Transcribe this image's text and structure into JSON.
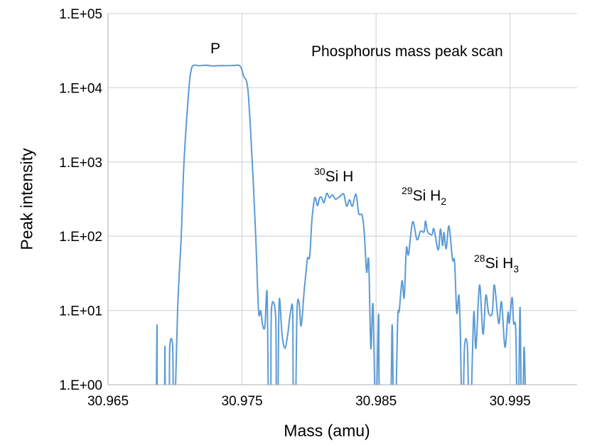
{
  "chart_data": {
    "type": "line",
    "title": "Phosphorus mass peak scan",
    "xlabel": "Mass (amu)",
    "ylabel": "Peak intensity",
    "xlim": [
      30.965,
      31.0
    ],
    "ylim": [
      1,
      100000
    ],
    "yscale": "log",
    "grid": true,
    "x_ticks": [
      30.965,
      30.975,
      30.985,
      30.995
    ],
    "x_tick_labels": [
      "30.965",
      "30.975",
      "30.985",
      "30.995"
    ],
    "y_ticks": [
      1,
      10,
      100,
      1000,
      10000,
      100000
    ],
    "y_tick_labels": [
      "1.E+00",
      "1.E+01",
      "1.E+02",
      "1.E+03",
      "1.E+04",
      "1.E+05"
    ],
    "line_color": "#5B9BD5",
    "annotations": {
      "p": "P",
      "si30h": {
        "isotope": "30",
        "text": "Si H"
      },
      "si29h2": {
        "isotope": "29",
        "text": "Si H",
        "sub": "2"
      },
      "si28h3": {
        "isotope": "28",
        "text": "Si H",
        "sub": "3"
      }
    },
    "series": [
      {
        "points": [
          [
            30.96855,
            0
          ],
          [
            30.9686,
            0
          ],
          [
            30.96866,
            6.4
          ],
          [
            30.96871,
            0
          ],
          [
            30.96918,
            0
          ],
          [
            30.96924,
            3.3
          ],
          [
            30.9693,
            0
          ],
          [
            30.96955,
            0
          ],
          [
            30.96961,
            3.3
          ],
          [
            30.96982,
            3.3
          ],
          [
            30.96988,
            0
          ],
          [
            30.97,
            0
          ],
          [
            30.97019,
            10
          ],
          [
            30.97046,
            100
          ],
          [
            30.97067,
            1000
          ],
          [
            30.97104,
            10000
          ],
          [
            30.9712,
            17000
          ],
          [
            30.97136,
            20000
          ],
          [
            30.97178,
            19800
          ],
          [
            30.97231,
            20100
          ],
          [
            30.97284,
            19700
          ],
          [
            30.97337,
            19900
          ],
          [
            30.9739,
            19800
          ],
          [
            30.97443,
            20000
          ],
          [
            30.97486,
            19600
          ],
          [
            30.97512,
            14400
          ],
          [
            30.97544,
            9200
          ],
          [
            30.97576,
            1000
          ],
          [
            30.97602,
            100
          ],
          [
            30.97623,
            9.9
          ],
          [
            30.97639,
            9.9
          ],
          [
            30.97655,
            6.2
          ],
          [
            30.97671,
            6.2
          ],
          [
            30.97687,
            17
          ],
          [
            30.97698,
            0
          ],
          [
            30.97714,
            0
          ],
          [
            30.97719,
            10
          ],
          [
            30.97751,
            8
          ],
          [
            30.97756,
            0
          ],
          [
            30.97767,
            0
          ],
          [
            30.97777,
            13.5
          ],
          [
            30.97798,
            4.8
          ],
          [
            30.9782,
            3.1
          ],
          [
            30.97841,
            4.8
          ],
          [
            30.97862,
            9.5
          ],
          [
            30.97878,
            9.5
          ],
          [
            30.97883,
            0
          ],
          [
            30.97899,
            0
          ],
          [
            30.9791,
            9.9
          ],
          [
            30.97926,
            12.6
          ],
          [
            30.97941,
            6.2
          ],
          [
            30.97963,
            18
          ],
          [
            30.97979,
            35
          ],
          [
            30.97989,
            51
          ],
          [
            30.98005,
            54
          ],
          [
            30.98021,
            163
          ],
          [
            30.98037,
            296
          ],
          [
            30.98047,
            330
          ],
          [
            30.98063,
            259
          ],
          [
            30.98079,
            330
          ],
          [
            30.98095,
            330
          ],
          [
            30.98111,
            283
          ],
          [
            30.98132,
            377
          ],
          [
            30.98153,
            330
          ],
          [
            30.98175,
            361
          ],
          [
            30.98196,
            316
          ],
          [
            30.98217,
            330
          ],
          [
            30.98238,
            353
          ],
          [
            30.98259,
            369
          ],
          [
            30.98281,
            254
          ],
          [
            30.98302,
            309
          ],
          [
            30.98323,
            254
          ],
          [
            30.9835,
            369
          ],
          [
            30.98371,
            203
          ],
          [
            30.98397,
            190
          ],
          [
            30.98413,
            105
          ],
          [
            30.98429,
            33
          ],
          [
            30.98445,
            46
          ],
          [
            30.98461,
            3.1
          ],
          [
            30.98477,
            12
          ],
          [
            30.98493,
            0
          ],
          [
            30.98503,
            0
          ],
          [
            30.98519,
            8.9
          ],
          [
            30.9853,
            0
          ],
          [
            30.98604,
            0
          ],
          [
            30.9862,
            6.4
          ],
          [
            30.9863,
            0
          ],
          [
            30.98646,
            0
          ],
          [
            30.98662,
            7.9
          ],
          [
            30.98673,
            9.9
          ],
          [
            30.98694,
            25
          ],
          [
            30.9871,
            15
          ],
          [
            30.98726,
            68
          ],
          [
            30.98742,
            57
          ],
          [
            30.98773,
            156
          ],
          [
            30.98805,
            90
          ],
          [
            30.98832,
            117
          ],
          [
            30.98858,
            115
          ],
          [
            30.98869,
            160
          ],
          [
            30.98885,
            115
          ],
          [
            30.98917,
            105
          ],
          [
            30.98932,
            125
          ],
          [
            30.98964,
            65
          ],
          [
            30.9898,
            125
          ],
          [
            30.98996,
            75
          ],
          [
            30.99007,
            112
          ],
          [
            30.99023,
            68
          ],
          [
            30.99044,
            137
          ],
          [
            30.9907,
            49
          ],
          [
            30.99086,
            45
          ],
          [
            30.99102,
            9.3
          ],
          [
            30.99118,
            16
          ],
          [
            30.99129,
            4.8
          ],
          [
            30.99139,
            0
          ],
          [
            30.9915,
            0
          ],
          [
            30.9916,
            3.3
          ],
          [
            30.99181,
            3.3
          ],
          [
            30.99192,
            0
          ],
          [
            30.99208,
            0
          ],
          [
            30.99229,
            9.3
          ],
          [
            30.99245,
            3.1
          ],
          [
            30.99272,
            22
          ],
          [
            30.99298,
            4.8
          ],
          [
            30.99319,
            16
          ],
          [
            30.9934,
            9.3
          ],
          [
            30.99367,
            9.3
          ],
          [
            30.99383,
            22
          ],
          [
            30.99415,
            6.7
          ],
          [
            30.99436,
            13
          ],
          [
            30.99462,
            3.2
          ],
          [
            30.99484,
            9.3
          ],
          [
            30.99494,
            6.8
          ],
          [
            30.99515,
            15
          ],
          [
            30.99526,
            6.8
          ],
          [
            30.99542,
            5.6
          ],
          [
            30.99552,
            0
          ],
          [
            30.99563,
            0
          ],
          [
            30.99574,
            11
          ],
          [
            30.99584,
            0
          ],
          [
            30.99595,
            0
          ],
          [
            30.99605,
            3.2
          ],
          [
            30.99616,
            0
          ]
        ]
      }
    ]
  }
}
